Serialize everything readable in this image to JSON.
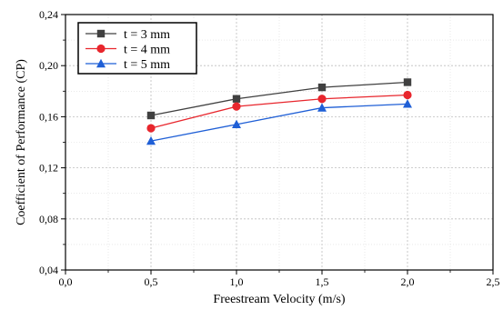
{
  "chart_data": {
    "type": "line",
    "title": "",
    "xlabel": "Freestream Velocity (m/s)",
    "ylabel": "Coefficient of Performance (CP)",
    "xlim": [
      0.0,
      2.5
    ],
    "ylim": [
      0.04,
      0.24
    ],
    "x_ticks": [
      "0,0",
      "0,5",
      "1,0",
      "1,5",
      "2,0",
      "2,5"
    ],
    "y_ticks": [
      "0,04",
      "0,08",
      "0,12",
      "0,16",
      "0,20",
      "0,24"
    ],
    "grid": true,
    "legend_position": "top-left",
    "x": [
      0.5,
      1.0,
      1.5,
      2.0
    ],
    "series": [
      {
        "name": "t = 3 mm",
        "values": [
          0.161,
          0.174,
          0.183,
          0.187
        ],
        "color": "#404040",
        "marker": "square"
      },
      {
        "name": "t = 4 mm",
        "values": [
          0.151,
          0.168,
          0.174,
          0.177
        ],
        "color": "#e8262d",
        "marker": "circle"
      },
      {
        "name": "t = 5 mm",
        "values": [
          0.141,
          0.154,
          0.167,
          0.17
        ],
        "color": "#1f5fd6",
        "marker": "triangle"
      }
    ]
  }
}
